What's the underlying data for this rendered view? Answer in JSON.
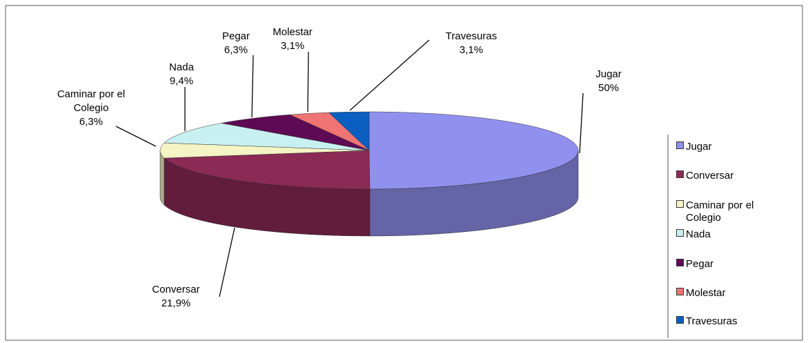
{
  "chart_data": {
    "type": "pie",
    "categories": [
      "Jugar",
      "Conversar",
      "Caminar por el Colegio",
      "Nada",
      "Pegar",
      "Molestar",
      "Travesuras"
    ],
    "values": [
      50,
      21.9,
      6.3,
      9.4,
      6.3,
      3.1,
      3.1
    ],
    "value_labels": [
      "50%",
      "21,9%",
      "6,3%",
      "9,4%",
      "6,3%",
      "3,1%",
      "3,1%"
    ],
    "colors": [
      "#9090ee",
      "#8b2a55",
      "#f4f4c4",
      "#c8f0f0",
      "#5e0a55",
      "#f07474",
      "#0a5fc0"
    ],
    "legend": "right"
  }
}
